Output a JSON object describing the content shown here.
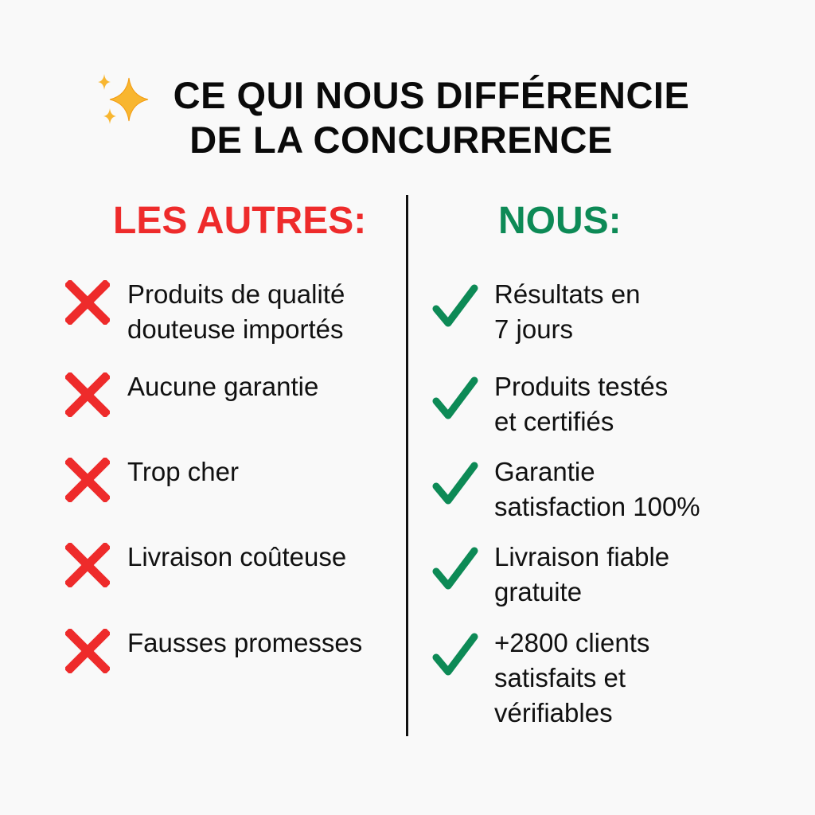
{
  "title": {
    "line1": "CE QUI NOUS DIFFÉRENCIE",
    "line2": "DE LA CONCURRENCE",
    "icon": "sparkles-icon"
  },
  "colors": {
    "others": "#ee2b2b",
    "us": "#0d8a56",
    "sparkle": "#f8b630"
  },
  "others": {
    "heading": "LES AUTRES:",
    "icon": "cross-icon",
    "items": [
      {
        "text": "Produits de qualité\ndouteuse importés"
      },
      {
        "text": "Aucune garantie"
      },
      {
        "text": "Trop cher"
      },
      {
        "text": "Livraison coûteuse"
      },
      {
        "text": "Fausses promesses"
      }
    ]
  },
  "us": {
    "heading": "NOUS:",
    "icon": "check-icon",
    "items": [
      {
        "text": "Résultats en\n7 jours"
      },
      {
        "text": "Produits testés\net certifiés"
      },
      {
        "text": "Garantie\nsatisfaction 100%"
      },
      {
        "text": "Livraison fiable\ngratuite"
      },
      {
        "text": "+2800 clients\nsatisfaits et\nvérifiables"
      }
    ]
  }
}
